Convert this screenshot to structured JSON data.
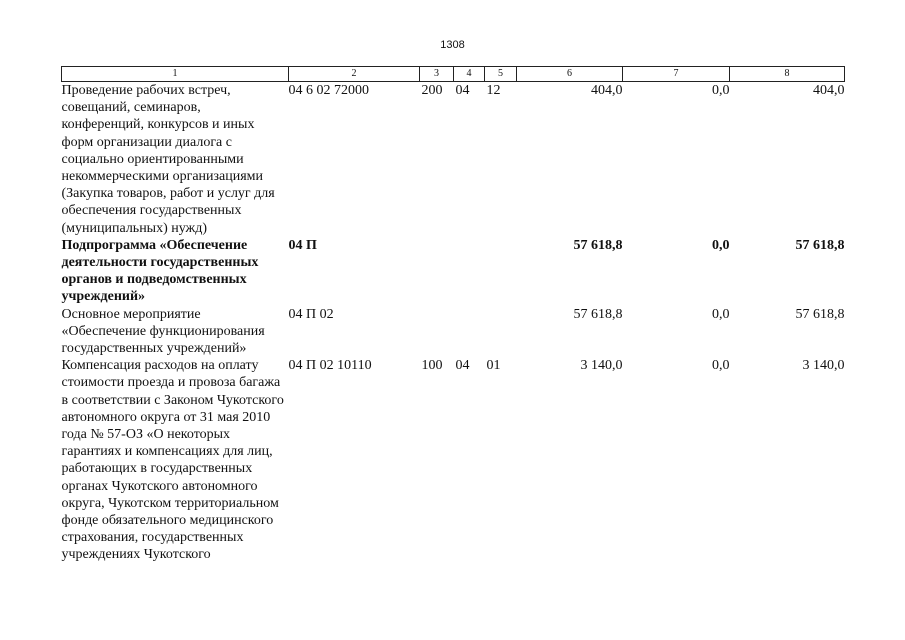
{
  "page_number": "1308",
  "columns": [
    "1",
    "2",
    "3",
    "4",
    "5",
    "6",
    "7",
    "8"
  ],
  "rows": [
    {
      "bold": false,
      "name": "Проведение рабочих встреч, совещаний, семинаров, конференций, конкурсов и иных форм организации диалога с социально ориентированными некоммерческими организациями (Закупка товаров, работ и услуг для обеспечения государственных (муниципальных) нужд)",
      "code": "04 6 02 72000",
      "c3": "200",
      "c4": "04",
      "c5": "12",
      "c6": "404,0",
      "c7": "0,0",
      "c8": "404,0"
    },
    {
      "bold": true,
      "name": "Подпрограмма «Обеспечение деятельности государственных органов и подведомственных учреждений»",
      "code": "04 П",
      "c3": "",
      "c4": "",
      "c5": "",
      "c6": "57 618,8",
      "c7": "0,0",
      "c8": "57 618,8"
    },
    {
      "bold": false,
      "name": "Основное мероприятие «Обеспечение функционирования государственных учреждений»",
      "code": "04 П 02",
      "c3": "",
      "c4": "",
      "c5": "",
      "c6": "57 618,8",
      "c7": "0,0",
      "c8": "57 618,8"
    },
    {
      "bold": false,
      "name": "Компенсация расходов на оплату стоимости проезда и провоза багажа в соответствии с Законом Чукотского автономного округа от 31 мая 2010 года № 57-ОЗ «О некоторых гарантиях и компенсациях для лиц, работающих в государственных органах Чукотского автономного округа, Чукотском территориальном фонде обязательного медицинского страхования, государственных учреждениях Чукотского",
      "code": "04 П 02 10110",
      "c3": "100",
      "c4": "04",
      "c5": "01",
      "c6": "3 140,0",
      "c7": "0,0",
      "c8": "3 140,0"
    }
  ]
}
